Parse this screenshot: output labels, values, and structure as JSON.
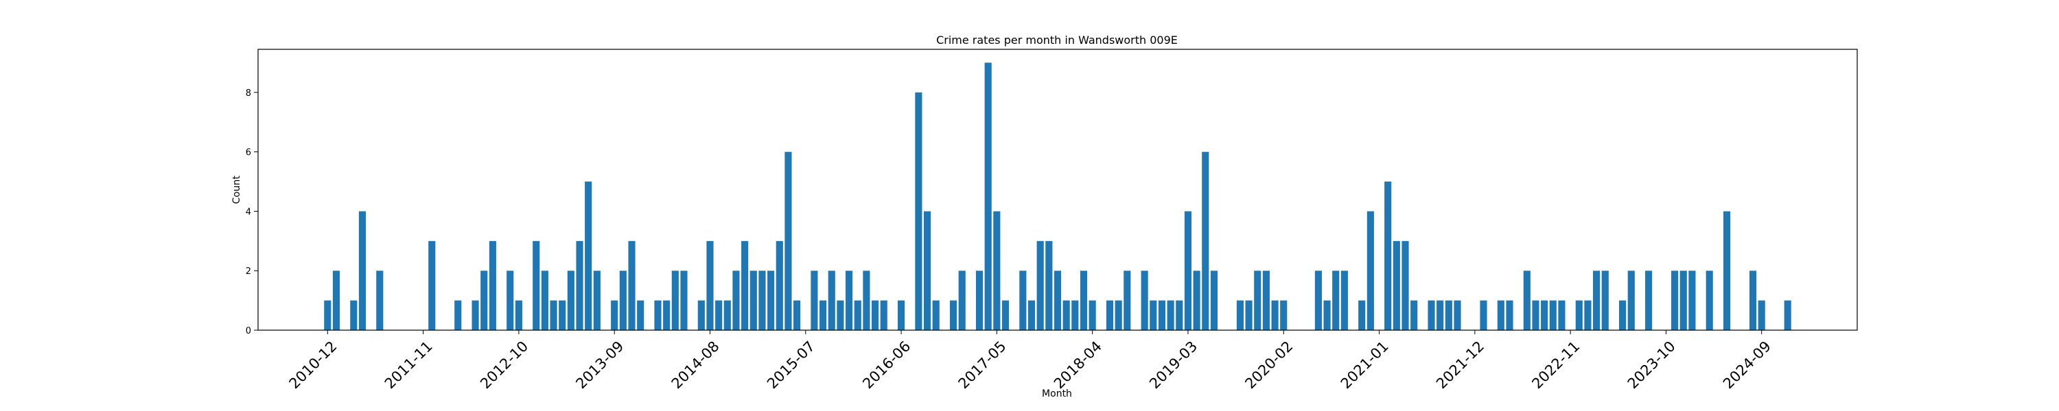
{
  "chart_data": {
    "type": "bar",
    "title": "Crime rates per month in Wandsworth 009E",
    "xlabel": "Month",
    "ylabel": "Count",
    "ylim": [
      0,
      9
    ],
    "yticks": [
      0,
      2,
      4,
      6,
      8
    ],
    "bar_color": "#1f77b4",
    "x_start": "2010-12",
    "months_span": 168,
    "tick_labels": [
      "2010-12",
      "2011-11",
      "2012-10",
      "2013-09",
      "2014-08",
      "2015-07",
      "2016-06",
      "2017-05",
      "2018-04",
      "2019-03",
      "2020-02",
      "2021-01",
      "2021-12",
      "2022-11",
      "2023-10",
      "2024-09"
    ],
    "points": [
      {
        "x": "2010-12",
        "y": 1
      },
      {
        "x": "2011-01",
        "y": 2
      },
      {
        "x": "2011-03",
        "y": 1
      },
      {
        "x": "2011-04",
        "y": 4
      },
      {
        "x": "2011-06",
        "y": 2
      },
      {
        "x": "2011-12",
        "y": 3
      },
      {
        "x": "2012-03",
        "y": 1
      },
      {
        "x": "2012-05",
        "y": 1
      },
      {
        "x": "2012-06",
        "y": 2
      },
      {
        "x": "2012-07",
        "y": 3
      },
      {
        "x": "2012-09",
        "y": 2
      },
      {
        "x": "2012-10",
        "y": 1
      },
      {
        "x": "2012-12",
        "y": 3
      },
      {
        "x": "2013-01",
        "y": 2
      },
      {
        "x": "2013-02",
        "y": 1
      },
      {
        "x": "2013-03",
        "y": 1
      },
      {
        "x": "2013-04",
        "y": 2
      },
      {
        "x": "2013-05",
        "y": 3
      },
      {
        "x": "2013-06",
        "y": 5
      },
      {
        "x": "2013-07",
        "y": 2
      },
      {
        "x": "2013-09",
        "y": 1
      },
      {
        "x": "2013-10",
        "y": 2
      },
      {
        "x": "2013-11",
        "y": 3
      },
      {
        "x": "2013-12",
        "y": 1
      },
      {
        "x": "2014-02",
        "y": 1
      },
      {
        "x": "2014-03",
        "y": 1
      },
      {
        "x": "2014-04",
        "y": 2
      },
      {
        "x": "2014-05",
        "y": 2
      },
      {
        "x": "2014-07",
        "y": 1
      },
      {
        "x": "2014-08",
        "y": 3
      },
      {
        "x": "2014-09",
        "y": 1
      },
      {
        "x": "2014-10",
        "y": 1
      },
      {
        "x": "2014-11",
        "y": 2
      },
      {
        "x": "2014-12",
        "y": 3
      },
      {
        "x": "2015-01",
        "y": 2
      },
      {
        "x": "2015-02",
        "y": 2
      },
      {
        "x": "2015-03",
        "y": 2
      },
      {
        "x": "2015-04",
        "y": 3
      },
      {
        "x": "2015-05",
        "y": 6
      },
      {
        "x": "2015-06",
        "y": 1
      },
      {
        "x": "2015-08",
        "y": 2
      },
      {
        "x": "2015-09",
        "y": 1
      },
      {
        "x": "2015-10",
        "y": 2
      },
      {
        "x": "2015-11",
        "y": 1
      },
      {
        "x": "2015-12",
        "y": 2
      },
      {
        "x": "2016-01",
        "y": 1
      },
      {
        "x": "2016-02",
        "y": 2
      },
      {
        "x": "2016-03",
        "y": 1
      },
      {
        "x": "2016-04",
        "y": 1
      },
      {
        "x": "2016-06",
        "y": 1
      },
      {
        "x": "2016-08",
        "y": 8
      },
      {
        "x": "2016-09",
        "y": 4
      },
      {
        "x": "2016-10",
        "y": 1
      },
      {
        "x": "2016-12",
        "y": 1
      },
      {
        "x": "2017-01",
        "y": 2
      },
      {
        "x": "2017-03",
        "y": 2
      },
      {
        "x": "2017-04",
        "y": 9
      },
      {
        "x": "2017-05",
        "y": 4
      },
      {
        "x": "2017-06",
        "y": 1
      },
      {
        "x": "2017-08",
        "y": 2
      },
      {
        "x": "2017-09",
        "y": 1
      },
      {
        "x": "2017-10",
        "y": 3
      },
      {
        "x": "2017-11",
        "y": 3
      },
      {
        "x": "2017-12",
        "y": 2
      },
      {
        "x": "2018-01",
        "y": 1
      },
      {
        "x": "2018-02",
        "y": 1
      },
      {
        "x": "2018-03",
        "y": 2
      },
      {
        "x": "2018-04",
        "y": 1
      },
      {
        "x": "2018-06",
        "y": 1
      },
      {
        "x": "2018-07",
        "y": 1
      },
      {
        "x": "2018-08",
        "y": 2
      },
      {
        "x": "2018-10",
        "y": 2
      },
      {
        "x": "2018-11",
        "y": 1
      },
      {
        "x": "2018-12",
        "y": 1
      },
      {
        "x": "2019-01",
        "y": 1
      },
      {
        "x": "2019-02",
        "y": 1
      },
      {
        "x": "2019-03",
        "y": 4
      },
      {
        "x": "2019-04",
        "y": 2
      },
      {
        "x": "2019-05",
        "y": 6
      },
      {
        "x": "2019-06",
        "y": 2
      },
      {
        "x": "2019-09",
        "y": 1
      },
      {
        "x": "2019-10",
        "y": 1
      },
      {
        "x": "2019-11",
        "y": 2
      },
      {
        "x": "2019-12",
        "y": 2
      },
      {
        "x": "2020-01",
        "y": 1
      },
      {
        "x": "2020-02",
        "y": 1
      },
      {
        "x": "2020-06",
        "y": 2
      },
      {
        "x": "2020-07",
        "y": 1
      },
      {
        "x": "2020-08",
        "y": 2
      },
      {
        "x": "2020-09",
        "y": 2
      },
      {
        "x": "2020-11",
        "y": 1
      },
      {
        "x": "2020-12",
        "y": 4
      },
      {
        "x": "2021-02",
        "y": 5
      },
      {
        "x": "2021-03",
        "y": 3
      },
      {
        "x": "2021-04",
        "y": 3
      },
      {
        "x": "2021-05",
        "y": 1
      },
      {
        "x": "2021-07",
        "y": 1
      },
      {
        "x": "2021-08",
        "y": 1
      },
      {
        "x": "2021-09",
        "y": 1
      },
      {
        "x": "2021-10",
        "y": 1
      },
      {
        "x": "2022-01",
        "y": 1
      },
      {
        "x": "2022-03",
        "y": 1
      },
      {
        "x": "2022-04",
        "y": 1
      },
      {
        "x": "2022-06",
        "y": 2
      },
      {
        "x": "2022-07",
        "y": 1
      },
      {
        "x": "2022-08",
        "y": 1
      },
      {
        "x": "2022-09",
        "y": 1
      },
      {
        "x": "2022-10",
        "y": 1
      },
      {
        "x": "2022-12",
        "y": 1
      },
      {
        "x": "2023-01",
        "y": 1
      },
      {
        "x": "2023-02",
        "y": 2
      },
      {
        "x": "2023-03",
        "y": 2
      },
      {
        "x": "2023-05",
        "y": 1
      },
      {
        "x": "2023-06",
        "y": 2
      },
      {
        "x": "2023-08",
        "y": 2
      },
      {
        "x": "2023-11",
        "y": 2
      },
      {
        "x": "2023-12",
        "y": 2
      },
      {
        "x": "2024-01",
        "y": 2
      },
      {
        "x": "2024-03",
        "y": 2
      },
      {
        "x": "2024-05",
        "y": 4
      },
      {
        "x": "2024-08",
        "y": 2
      },
      {
        "x": "2024-09",
        "y": 1
      },
      {
        "x": "2024-12",
        "y": 1
      }
    ]
  }
}
